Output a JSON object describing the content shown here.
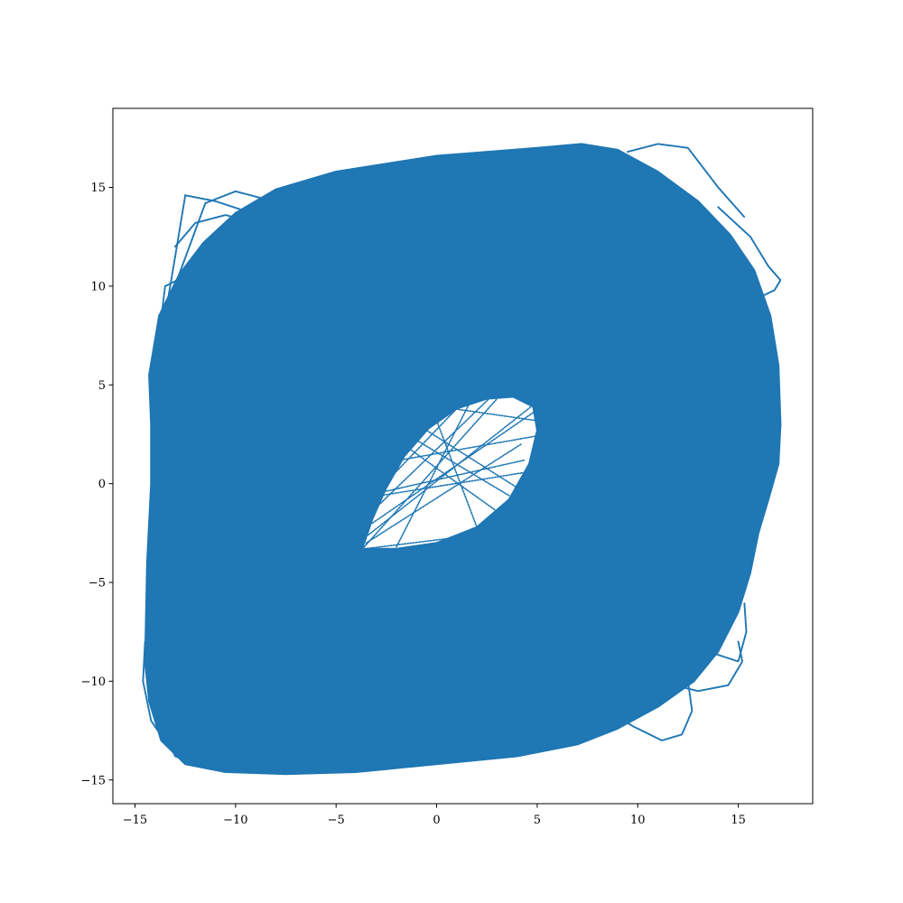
{
  "chart_data": {
    "type": "scatter",
    "title": "",
    "xlabel": "",
    "ylabel": "",
    "xlim": [
      -16.1,
      18.7
    ],
    "ylim": [
      -16.2,
      19.0
    ],
    "grid": false,
    "legend": "none",
    "marker": "dot",
    "series": [
      {
        "color": "#1f77b4",
        "outer_boundary": [
          [
            -14.3,
            5.5
          ],
          [
            -13.8,
            8.5
          ],
          [
            -12.8,
            10.6
          ],
          [
            -11.6,
            12.2
          ],
          [
            -10.0,
            13.7
          ],
          [
            -8.0,
            14.9
          ],
          [
            -5.0,
            15.8
          ],
          [
            0.0,
            16.6
          ],
          [
            5.0,
            17.0
          ],
          [
            7.2,
            17.2
          ],
          [
            9.0,
            16.9
          ],
          [
            11.0,
            15.8
          ],
          [
            13.0,
            14.3
          ],
          [
            14.6,
            12.6
          ],
          [
            15.8,
            10.8
          ],
          [
            16.6,
            8.5
          ],
          [
            17.0,
            6.0
          ],
          [
            17.1,
            3.0
          ],
          [
            17.0,
            1.0
          ],
          [
            16.5,
            -0.8
          ],
          [
            16.0,
            -2.5
          ],
          [
            15.6,
            -4.5
          ],
          [
            15.0,
            -6.5
          ],
          [
            14.0,
            -8.5
          ],
          [
            12.8,
            -10.0
          ],
          [
            11.0,
            -11.3
          ],
          [
            9.0,
            -12.4
          ],
          [
            7.0,
            -13.2
          ],
          [
            4.0,
            -13.8
          ],
          [
            0.0,
            -14.2
          ],
          [
            -4.0,
            -14.6
          ],
          [
            -7.5,
            -14.7
          ],
          [
            -10.5,
            -14.6
          ],
          [
            -12.5,
            -14.2
          ],
          [
            -13.7,
            -13.0
          ],
          [
            -14.3,
            -11.0
          ],
          [
            -14.5,
            -9.0
          ],
          [
            -14.4,
            -4.0
          ],
          [
            -14.2,
            0.0
          ],
          [
            -14.2,
            3.0
          ]
        ],
        "inner_hole": [
          [
            -3.7,
            -3.3
          ],
          [
            -3.2,
            -1.8
          ],
          [
            -2.5,
            -0.2
          ],
          [
            -1.6,
            1.4
          ],
          [
            -0.4,
            2.8
          ],
          [
            1.0,
            3.8
          ],
          [
            2.5,
            4.3
          ],
          [
            3.8,
            4.4
          ],
          [
            4.8,
            3.9
          ],
          [
            5.0,
            2.7
          ],
          [
            4.6,
            1.0
          ],
          [
            3.6,
            -0.8
          ],
          [
            2.0,
            -2.2
          ],
          [
            0.0,
            -3.0
          ],
          [
            -2.0,
            -3.3
          ]
        ],
        "excursions": [
          [
            [
              -13.5,
              8.5
            ],
            [
              -13.0,
              11.5
            ],
            [
              -12.5,
              14.6
            ],
            [
              -11.0,
              14.3
            ],
            [
              -9.5,
              13.8
            ]
          ],
          [
            [
              -13.2,
              9.5
            ],
            [
              -11.5,
              14.2
            ],
            [
              -10.0,
              14.8
            ],
            [
              -8.5,
              14.4
            ]
          ],
          [
            [
              -13.8,
              7.5
            ],
            [
              -13.5,
              10.0
            ],
            [
              -12.5,
              10.5
            ],
            [
              -11.5,
              11.0
            ]
          ],
          [
            [
              -13.0,
              12.0
            ],
            [
              -12.0,
              13.2
            ],
            [
              -10.5,
              13.6
            ],
            [
              -9.0,
              13.2
            ]
          ],
          [
            [
              9.5,
              16.8
            ],
            [
              11.0,
              17.2
            ],
            [
              12.5,
              17.0
            ],
            [
              14.0,
              15.0
            ],
            [
              15.3,
              13.5
            ]
          ],
          [
            [
              14.0,
              14.0
            ],
            [
              15.6,
              12.5
            ],
            [
              16.5,
              11.0
            ],
            [
              17.1,
              10.3
            ],
            [
              16.8,
              9.8
            ],
            [
              16.2,
              9.5
            ]
          ],
          [
            [
              16.5,
              2.5
            ],
            [
              17.0,
              1.8
            ],
            [
              17.0,
              1.0
            ],
            [
              16.6,
              0.3
            ]
          ],
          [
            [
              8.5,
              -11.5
            ],
            [
              9.8,
              -12.3
            ],
            [
              11.2,
              -13.0
            ],
            [
              12.2,
              -12.7
            ],
            [
              12.7,
              -11.5
            ],
            [
              12.5,
              -10.0
            ]
          ],
          [
            [
              11.0,
              -10.0
            ],
            [
              13.0,
              -10.5
            ],
            [
              14.5,
              -10.2
            ],
            [
              15.2,
              -9.0
            ],
            [
              15.0,
              -8.0
            ]
          ],
          [
            [
              13.5,
              -8.5
            ],
            [
              15.0,
              -9.0
            ],
            [
              15.4,
              -7.5
            ],
            [
              15.3,
              -6.0
            ]
          ],
          [
            [
              -13.8,
              -12.0
            ],
            [
              -13.0,
              -13.8
            ],
            [
              -11.5,
              -14.4
            ],
            [
              -9.5,
              -14.6
            ],
            [
              -8.0,
              -14.6
            ]
          ],
          [
            [
              -14.5,
              -8.0
            ],
            [
              -14.6,
              -10.0
            ],
            [
              -14.2,
              -12.0
            ],
            [
              -13.2,
              -13.5
            ]
          ]
        ],
        "hole_chords": [
          [
            [
              -3.6,
              -3.2
            ],
            [
              3.0,
              4.3
            ]
          ],
          [
            [
              -3.2,
              -2.0
            ],
            [
              4.8,
              3.6
            ]
          ],
          [
            [
              -2.6,
              -0.4
            ],
            [
              4.4,
              1.2
            ]
          ],
          [
            [
              -1.8,
              1.2
            ],
            [
              4.9,
              2.4
            ]
          ],
          [
            [
              -3.0,
              -1.2
            ],
            [
              2.6,
              4.3
            ]
          ],
          [
            [
              -2.4,
              0.2
            ],
            [
              1.0,
              3.8
            ]
          ],
          [
            [
              -1.0,
              2.2
            ],
            [
              3.6,
              -0.6
            ]
          ],
          [
            [
              0.0,
              3.2
            ],
            [
              2.0,
              -2.2
            ]
          ],
          [
            [
              -3.5,
              -3.0
            ],
            [
              4.2,
              2.0
            ]
          ],
          [
            [
              -2.8,
              -0.6
            ],
            [
              4.6,
              0.6
            ]
          ],
          [
            [
              -0.5,
              2.7
            ],
            [
              4.0,
              -0.2
            ]
          ],
          [
            [
              -3.6,
              -3.3
            ],
            [
              1.2,
              -2.7
            ]
          ],
          [
            [
              -2.0,
              -3.2
            ],
            [
              1.6,
              4.0
            ]
          ],
          [
            [
              0.8,
              3.8
            ],
            [
              4.9,
              3.2
            ]
          ],
          [
            [
              -3.4,
              -2.6
            ],
            [
              4.7,
              3.9
            ]
          ],
          [
            [
              -1.4,
              1.8
            ],
            [
              3.0,
              -1.4
            ]
          ]
        ]
      }
    ],
    "xticks": [
      {
        "value": -15,
        "label": "−15"
      },
      {
        "value": -10,
        "label": "−10"
      },
      {
        "value": -5,
        "label": "−5"
      },
      {
        "value": 0,
        "label": "0"
      },
      {
        "value": 5,
        "label": "5"
      },
      {
        "value": 10,
        "label": "10"
      },
      {
        "value": 15,
        "label": "15"
      }
    ],
    "yticks": [
      {
        "value": -15,
        "label": "−15"
      },
      {
        "value": -10,
        "label": "−10"
      },
      {
        "value": -5,
        "label": "−5"
      },
      {
        "value": 0,
        "label": "0"
      },
      {
        "value": 5,
        "label": "5"
      },
      {
        "value": 10,
        "label": "10"
      },
      {
        "value": 15,
        "label": "15"
      }
    ]
  }
}
